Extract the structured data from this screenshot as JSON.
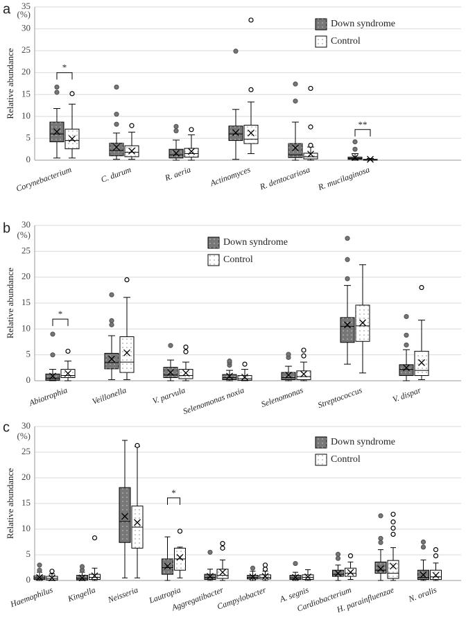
{
  "chart_data": [
    {
      "type": "box",
      "panel_label": "a",
      "y_label": "Relative abundance",
      "unit": "(%)",
      "ylim": [
        0,
        35
      ],
      "yticks": [
        0,
        5,
        10,
        15,
        20,
        25,
        30,
        35
      ],
      "grid": true,
      "legend_position": "upper right",
      "categories": [
        "Corynebacterium",
        "C. durum",
        "R. aeria",
        "Actinomyces",
        "R. dentocariosa",
        "R. mucilaginosa"
      ],
      "series": [
        {
          "name": "Down syndrome",
          "color": "#777777",
          "boxes": [
            {
              "min": 0.5,
              "q1": 4.2,
              "median": 6.0,
              "q3": 8.7,
              "max": 11.8,
              "mean": 6.5,
              "outliers": [
                15.5,
                16.7
              ]
            },
            {
              "min": 0.2,
              "q1": 1.0,
              "median": 2.2,
              "q3": 3.9,
              "max": 6.2,
              "mean": 3.0,
              "outliers": [
                8.2,
                10.5,
                16.7
              ]
            },
            {
              "min": 0,
              "q1": 0.5,
              "median": 1.2,
              "q3": 2.5,
              "max": 4.6,
              "mean": 1.6,
              "outliers": [
                6.7,
                7.7
              ]
            },
            {
              "min": 0.2,
              "q1": 4.5,
              "median": 6.0,
              "q3": 7.8,
              "max": 11.6,
              "mean": 6.3,
              "outliers": [
                24.9
              ]
            },
            {
              "min": 0,
              "q1": 0.6,
              "median": 1.2,
              "q3": 3.8,
              "max": 8.7,
              "mean": 2.8,
              "outliers": [
                13.5,
                17.4
              ]
            },
            {
              "min": 0,
              "q1": 0.2,
              "median": 0.4,
              "q3": 0.7,
              "max": 1.5,
              "mean": 0.6,
              "outliers": [
                2.5,
                4.2
              ]
            }
          ]
        },
        {
          "name": "Control",
          "color": "#ffffff",
          "boxes": [
            {
              "min": 0.5,
              "q1": 2.6,
              "median": 4.5,
              "q3": 7.1,
              "max": 12.8,
              "mean": 4.9,
              "outliers": [
                15.2
              ]
            },
            {
              "min": 0.2,
              "q1": 0.8,
              "median": 1.8,
              "q3": 3.3,
              "max": 6.4,
              "mean": 2.1,
              "outliers": [
                7.9
              ]
            },
            {
              "min": 0,
              "q1": 0.7,
              "median": 1.5,
              "q3": 2.7,
              "max": 5.8,
              "mean": 2.0,
              "outliers": [
                7.0
              ]
            },
            {
              "min": 1.5,
              "q1": 3.8,
              "median": 4.8,
              "q3": 8.0,
              "max": 13.3,
              "mean": 6.2,
              "outliers": [
                16.1,
                32.0
              ]
            },
            {
              "min": 0,
              "q1": 0.3,
              "median": 0.8,
              "q3": 1.6,
              "max": 3.0,
              "mean": 1.4,
              "outliers": [
                3.4,
                7.6,
                16.4
              ]
            },
            {
              "min": 0,
              "q1": 0,
              "median": 0.1,
              "q3": 0.2,
              "max": 0.4,
              "mean": 0.2,
              "outliers": []
            }
          ]
        }
      ],
      "annotations": [
        {
          "text": "*",
          "category": 0,
          "y": 20
        },
        {
          "text": "**",
          "category": 5,
          "y": 7
        }
      ]
    },
    {
      "type": "box",
      "panel_label": "b",
      "y_label": "Relative abundance",
      "unit": "(%)",
      "ylim": [
        0,
        30
      ],
      "yticks": [
        0,
        5,
        10,
        15,
        20,
        25,
        30
      ],
      "grid": true,
      "legend_position": "upper center",
      "categories": [
        "Abiotrophia",
        "Veillonella",
        "V. parvula",
        "Selenomonas noxia",
        "Selenomonas",
        "Streptococcus",
        "V. dispar"
      ],
      "series": [
        {
          "name": "Down syndrome",
          "color": "#777777",
          "boxes": [
            {
              "min": 0,
              "q1": 0.1,
              "median": 0.5,
              "q3": 1.3,
              "max": 2.2,
              "mean": 0.9,
              "outliers": [
                5,
                9
              ]
            },
            {
              "min": 0.2,
              "q1": 2.3,
              "median": 3.5,
              "q3": 5.3,
              "max": 8.7,
              "mean": 4.2,
              "outliers": [
                10.8,
                11.6,
                16.6
              ]
            },
            {
              "min": 0,
              "q1": 0.6,
              "median": 1.1,
              "q3": 2.6,
              "max": 4.0,
              "mean": 1.6,
              "outliers": [
                6.8
              ]
            },
            {
              "min": 0,
              "q1": 0.2,
              "median": 0.6,
              "q3": 1.2,
              "max": 2.0,
              "mean": 0.9,
              "outliers": [
                3.0,
                3.5,
                3.8
              ]
            },
            {
              "min": 0,
              "q1": 0.2,
              "median": 0.6,
              "q3": 1.6,
              "max": 2.8,
              "mean": 1.1,
              "outliers": [
                4.5,
                5.1
              ]
            },
            {
              "min": 3.2,
              "q1": 7.4,
              "median": 10.5,
              "q3": 12.2,
              "max": 18.4,
              "mean": 10.8,
              "outliers": [
                19.7,
                23.4,
                27.5
              ]
            },
            {
              "min": 0,
              "q1": 1.0,
              "median": 2.2,
              "q3": 3.1,
              "max": 6.0,
              "mean": 2.5,
              "outliers": [
                6.9,
                8.8,
                12.4
              ]
            }
          ]
        },
        {
          "name": "Control",
          "color": "#ffffff",
          "boxes": [
            {
              "min": 0,
              "q1": 0.6,
              "median": 1.0,
              "q3": 2.2,
              "max": 3.8,
              "mean": 1.4,
              "outliers": [
                5.7
              ]
            },
            {
              "min": 0.2,
              "q1": 1.6,
              "median": 3.6,
              "q3": 8.5,
              "max": 16.1,
              "mean": 5.4,
              "outliers": [
                19.5
              ]
            },
            {
              "min": 0,
              "q1": 0.4,
              "median": 1.0,
              "q3": 2.2,
              "max": 3.6,
              "mean": 1.5,
              "outliers": [
                5.6,
                6.5
              ]
            },
            {
              "min": 0,
              "q1": 0.1,
              "median": 0.4,
              "q3": 1.0,
              "max": 2.2,
              "mean": 0.7,
              "outliers": [
                3.2
              ]
            },
            {
              "min": 0,
              "q1": 0.2,
              "median": 0.8,
              "q3": 1.9,
              "max": 3.6,
              "mean": 1.3,
              "outliers": [
                4.8,
                5.9
              ]
            },
            {
              "min": 1.5,
              "q1": 7.6,
              "median": 10.6,
              "q3": 14.6,
              "max": 22.4,
              "mean": 11.2,
              "outliers": []
            },
            {
              "min": 0.2,
              "q1": 1.0,
              "median": 2.0,
              "q3": 5.7,
              "max": 11.7,
              "mean": 3.5,
              "outliers": [
                18.0
              ]
            }
          ]
        }
      ],
      "annotations": [
        {
          "text": "*",
          "category": 0,
          "y": 11.9
        }
      ]
    },
    {
      "type": "box",
      "panel_label": "c",
      "y_label": "Relative abundance",
      "unit": "(%)",
      "ylim": [
        0,
        30
      ],
      "yticks": [
        0,
        5,
        10,
        15,
        20,
        25,
        30
      ],
      "grid": true,
      "legend_position": "upper right",
      "categories": [
        "Haemophilus",
        "Kingella",
        "Neisseria",
        "Lautropia",
        "Aggregatibacter",
        "Campylobacter",
        "A. segnis",
        "Cardiobacterium",
        "H. parainfluenzae",
        "N. oralis"
      ],
      "series": [
        {
          "name": "Down syndrome",
          "color": "#777777",
          "boxes": [
            {
              "min": 0,
              "q1": 0.2,
              "median": 0.5,
              "q3": 0.9,
              "max": 1.6,
              "mean": 0.6,
              "outliers": [
                2.0,
                3.0
              ]
            },
            {
              "min": 0,
              "q1": 0.1,
              "median": 0.4,
              "q3": 1.0,
              "max": 1.6,
              "mean": 0.5,
              "outliers": [
                2.0,
                2.7
              ]
            },
            {
              "min": 0.5,
              "q1": 7.4,
              "median": 11.5,
              "q3": 18.1,
              "max": 27.3,
              "mean": 12.5,
              "outliers": []
            },
            {
              "min": 0,
              "q1": 1.2,
              "median": 2.5,
              "q3": 4.2,
              "max": 8.5,
              "mean": 2.8,
              "outliers": []
            },
            {
              "min": 0,
              "q1": 0.2,
              "median": 0.6,
              "q3": 1.2,
              "max": 2.2,
              "mean": 0.8,
              "outliers": [
                5.5
              ]
            },
            {
              "min": 0,
              "q1": 0.3,
              "median": 0.6,
              "q3": 1.0,
              "max": 1.8,
              "mean": 0.7,
              "outliers": [
                2.4
              ]
            },
            {
              "min": 0,
              "q1": 0.2,
              "median": 0.5,
              "q3": 1.0,
              "max": 1.6,
              "mean": 0.6,
              "outliers": [
                3.3
              ]
            },
            {
              "min": 0,
              "q1": 0.8,
              "median": 1.2,
              "q3": 2.0,
              "max": 3.0,
              "mean": 1.4,
              "outliers": [
                4.3,
                5.1
              ]
            },
            {
              "min": 0,
              "q1": 1.4,
              "median": 2.0,
              "q3": 3.6,
              "max": 6.0,
              "mean": 2.3,
              "outliers": [
                7.4,
                8.2,
                12.6
              ]
            },
            {
              "min": 0,
              "q1": 0.2,
              "median": 0.6,
              "q3": 2.0,
              "max": 4.0,
              "mean": 1.1,
              "outliers": [
                6.5,
                7.5
              ]
            }
          ]
        },
        {
          "name": "Control",
          "color": "#ffffff",
          "boxes": [
            {
              "min": 0,
              "q1": 0.1,
              "median": 0.4,
              "q3": 0.8,
              "max": 1.3,
              "mean": 0.5,
              "outliers": [
                1.8
              ]
            },
            {
              "min": 0,
              "q1": 0.2,
              "median": 0.6,
              "q3": 1.2,
              "max": 2.4,
              "mean": 0.9,
              "outliers": [
                8.3
              ]
            },
            {
              "min": 0.5,
              "q1": 6.3,
              "median": 10.4,
              "q3": 14.5,
              "max": 26.1,
              "mean": 11.3,
              "outliers": [
                26.3
              ]
            },
            {
              "min": 0.5,
              "q1": 2.0,
              "median": 4.2,
              "q3": 6.3,
              "max": 6.5,
              "mean": 4.5,
              "outliers": [
                9.6
              ]
            },
            {
              "min": 0,
              "q1": 0.4,
              "median": 1.0,
              "q3": 2.2,
              "max": 4.0,
              "mean": 1.6,
              "outliers": [
                6.3,
                7.2
              ]
            },
            {
              "min": 0,
              "q1": 0.3,
              "median": 0.6,
              "q3": 1.1,
              "max": 1.8,
              "mean": 0.8,
              "outliers": [
                2.2,
                3.0
              ]
            },
            {
              "min": 0,
              "q1": 0.2,
              "median": 0.6,
              "q3": 1.1,
              "max": 2.1,
              "mean": 0.7,
              "outliers": []
            },
            {
              "min": 0.2,
              "q1": 0.8,
              "median": 1.4,
              "q3": 2.4,
              "max": 3.6,
              "mean": 1.6,
              "outliers": [
                4.8
              ]
            },
            {
              "min": 0,
              "q1": 0.4,
              "median": 1.4,
              "q3": 3.9,
              "max": 6.4,
              "mean": 2.8,
              "outliers": [
                9.0,
                10.2,
                11.4,
                12.9
              ]
            },
            {
              "min": 0,
              "q1": 0.2,
              "median": 0.7,
              "q3": 2.0,
              "max": 3.4,
              "mean": 1.0,
              "outliers": [
                4.8,
                6.0
              ]
            }
          ]
        }
      ],
      "annotations": [
        {
          "text": "*",
          "category": 3,
          "y": 16.1
        }
      ]
    }
  ]
}
